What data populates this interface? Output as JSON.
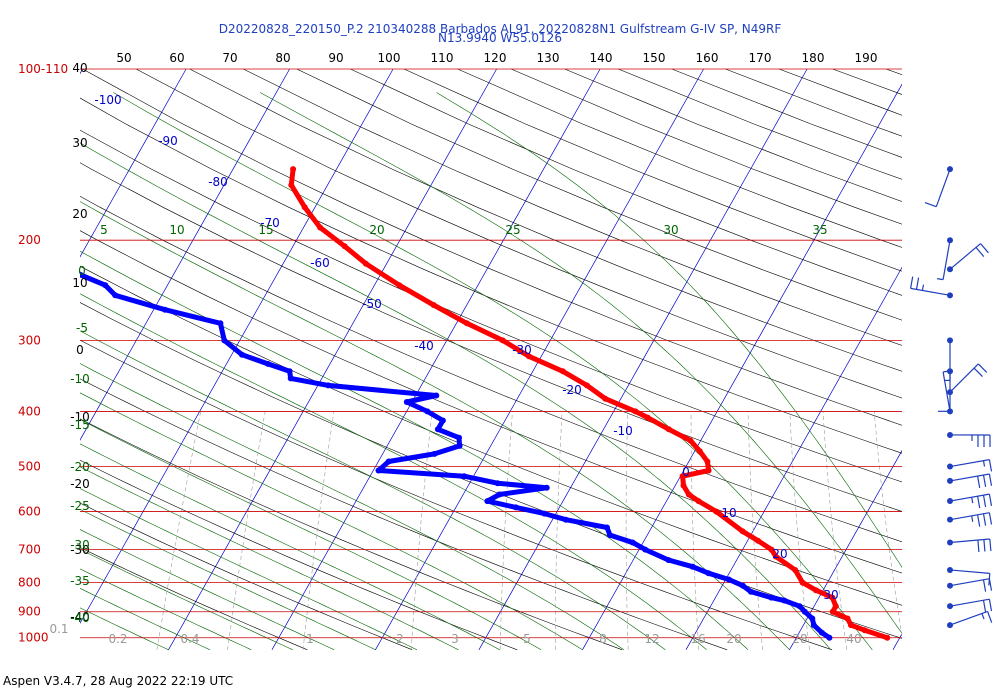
{
  "header": {
    "line1": "D20220828_220150_P.2 210340288 Barbados AL91, 20220828N1 Gulfstream G-IV SP, N49RF",
    "line2": "N13.9940 W55.0126"
  },
  "footer": "Aspen V3.4.7, 28 Aug 2022  22:19 UTC",
  "colors": {
    "temperature": "#ff0000",
    "dewpoint": "#0000ff",
    "isobar": "#cc0000",
    "isotherm": "#0000cc",
    "dry_adiabat": "#000000",
    "moist_adiabat": "#006600",
    "mixing_ratio": "#9a9a9a",
    "wind_barb": "#1f3fbf"
  },
  "chart_data": {
    "type": "skew-t",
    "pressure_axis_label": "100-110",
    "pressure_levels": [
      100,
      200,
      300,
      400,
      500,
      600,
      700,
      800,
      900,
      1000
    ],
    "pressure_labels": [
      "100-110",
      "200",
      "300",
      "400",
      "500",
      "600",
      "700",
      "800",
      "900",
      "1000"
    ],
    "top_scale": [
      50,
      60,
      70,
      80,
      90,
      100,
      110,
      120,
      130,
      140,
      150,
      160,
      170,
      180,
      190
    ],
    "left_scale": [
      40,
      30,
      20,
      10,
      0,
      -10,
      -20,
      -30,
      -40
    ],
    "isotherm_labels": [
      -100,
      -90,
      -80,
      -70,
      -60,
      -50,
      -40,
      -30,
      -20,
      -10,
      0,
      10,
      20,
      30
    ],
    "moist_adiabat_labels": [
      5,
      10,
      15,
      20,
      25,
      30,
      35,
      0,
      -5,
      -10,
      -15,
      -20,
      -25,
      -30,
      -35,
      -40
    ],
    "mixing_ratio_labels": [
      "0.1",
      "0.2",
      "0.4",
      "1",
      "2",
      "3",
      "5",
      "8",
      "12",
      "16",
      "20",
      "28",
      "40"
    ],
    "series": [
      {
        "name": "temperature",
        "points": [
          [
            1000,
            28.8
          ],
          [
            970,
            26.2
          ],
          [
            950,
            24.6
          ],
          [
            925,
            23.9
          ],
          [
            900,
            22.1
          ],
          [
            880,
            22.1
          ],
          [
            850,
            21.3
          ],
          [
            825,
            19.3
          ],
          [
            800,
            17.6
          ],
          [
            760,
            16.2
          ],
          [
            720,
            13.6
          ],
          [
            700,
            12.8
          ],
          [
            675,
            11.0
          ],
          [
            650,
            9.0
          ],
          [
            600,
            5.4
          ],
          [
            575,
            3.1
          ],
          [
            560,
            1.8
          ],
          [
            540,
            0.8
          ],
          [
            520,
            0.2
          ],
          [
            508,
            2.4
          ],
          [
            490,
            1.8
          ],
          [
            470,
            0.5
          ],
          [
            450,
            -1.0
          ],
          [
            430,
            -3.7
          ],
          [
            410,
            -6.4
          ],
          [
            400,
            -7.9
          ],
          [
            380,
            -11.5
          ],
          [
            360,
            -14.0
          ],
          [
            340,
            -17.1
          ],
          [
            320,
            -21.2
          ],
          [
            300,
            -24.6
          ],
          [
            280,
            -29.0
          ],
          [
            260,
            -33.2
          ],
          [
            240,
            -37.6
          ],
          [
            220,
            -42.0
          ],
          [
            205,
            -45.0
          ],
          [
            190,
            -48.4
          ],
          [
            175,
            -51.0
          ],
          [
            160,
            -53.5
          ],
          [
            150,
            -54.2
          ]
        ]
      },
      {
        "name": "dewpoint",
        "points": [
          [
            1000,
            23.2
          ],
          [
            980,
            22.2
          ],
          [
            950,
            21.0
          ],
          [
            925,
            20.5
          ],
          [
            900,
            19.4
          ],
          [
            880,
            18.6
          ],
          [
            860,
            16.8
          ],
          [
            850,
            15.4
          ],
          [
            830,
            13.1
          ],
          [
            810,
            12.0
          ],
          [
            790,
            10.3
          ],
          [
            770,
            8.0
          ],
          [
            750,
            6.1
          ],
          [
            730,
            3.4
          ],
          [
            700,
            0.6
          ],
          [
            680,
            -1.0
          ],
          [
            660,
            -3.6
          ],
          [
            640,
            -4.3
          ],
          [
            620,
            -8.7
          ],
          [
            605,
            -11.1
          ],
          [
            590,
            -14.2
          ],
          [
            575,
            -17.3
          ],
          [
            560,
            -16.5
          ],
          [
            545,
            -12.3
          ],
          [
            535,
            -17.3
          ],
          [
            520,
            -20.9
          ],
          [
            508,
            -29.5
          ],
          [
            490,
            -29.0
          ],
          [
            475,
            -25.0
          ],
          [
            460,
            -23.0
          ],
          [
            445,
            -23.5
          ],
          [
            430,
            -26.0
          ],
          [
            415,
            -26.0
          ],
          [
            400,
            -28.0
          ],
          [
            385,
            -30.5
          ],
          [
            375,
            -28.0
          ],
          [
            360,
            -39.0
          ],
          [
            350,
            -43.0
          ],
          [
            340,
            -43.5
          ],
          [
            330,
            -46.0
          ],
          [
            318,
            -49.0
          ],
          [
            300,
            -51.5
          ],
          [
            280,
            -52.8
          ],
          [
            265,
            -58.9
          ],
          [
            250,
            -64.5
          ],
          [
            240,
            -66.0
          ],
          [
            230,
            -69.0
          ],
          [
            215,
            -73.0
          ],
          [
            205,
            -74.5
          ]
        ]
      }
    ],
    "wind_barbs": [
      {
        "pressure": 150,
        "dir": 200,
        "kt": 10
      },
      {
        "pressure": 200,
        "dir": 190,
        "kt": 5
      },
      {
        "pressure": 225,
        "dir": 50,
        "kt": 20
      },
      {
        "pressure": 250,
        "dir": 280,
        "kt": 25
      },
      {
        "pressure": 300,
        "dir": 180,
        "kt": 5
      },
      {
        "pressure": 340,
        "dir": 180,
        "kt": 10
      },
      {
        "pressure": 370,
        "dir": 45,
        "kt": 20
      },
      {
        "pressure": 400,
        "dir": 350,
        "kt": 5
      },
      {
        "pressure": 440,
        "dir": 90,
        "kt": 35
      },
      {
        "pressure": 500,
        "dir": 80,
        "kt": 15
      },
      {
        "pressure": 530,
        "dir": 80,
        "kt": 30
      },
      {
        "pressure": 575,
        "dir": 80,
        "kt": 35
      },
      {
        "pressure": 620,
        "dir": 80,
        "kt": 35
      },
      {
        "pressure": 680,
        "dir": 85,
        "kt": 30
      },
      {
        "pressure": 760,
        "dir": 95,
        "kt": 10
      },
      {
        "pressure": 810,
        "dir": 80,
        "kt": 20
      },
      {
        "pressure": 880,
        "dir": 80,
        "kt": 20
      },
      {
        "pressure": 950,
        "dir": 70,
        "kt": 15
      }
    ]
  }
}
